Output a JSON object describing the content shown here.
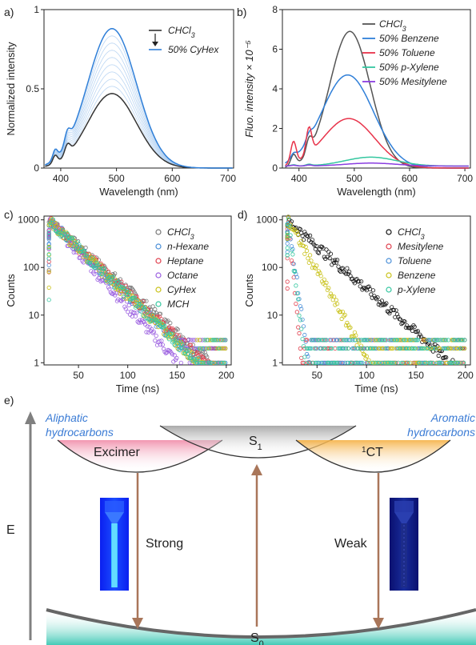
{
  "panels": {
    "a": "a)",
    "b": "b)",
    "c": "c)",
    "d": "d)",
    "e": "e)"
  },
  "chart_data": [
    {
      "id": "a",
      "type": "line",
      "xlabel": "Wavelength (nm)",
      "ylabel": "Normalized intensity",
      "xlim": [
        370,
        710
      ],
      "ylim": [
        0,
        1
      ],
      "xticks": [
        400,
        500,
        600,
        700
      ],
      "yticks": [
        {
          "v": 0,
          "t": "0"
        },
        {
          "v": 0.5,
          "t": "0.5"
        },
        {
          "v": 1,
          "t": "1"
        }
      ],
      "legend": [
        "CHCl3",
        "50% CyHex"
      ],
      "series": [
        {
          "name": "CHCl3",
          "color": "#333333",
          "peak": 0.47
        },
        {
          "name": "50% CyHex",
          "color": "#2f7fd8",
          "peak": 0.88
        }
      ],
      "n_intermediate": 8,
      "peak_x": 492
    },
    {
      "id": "b",
      "type": "line",
      "xlabel": "Wavelength (nm)",
      "ylabel": "Fluo. intensity × 10⁻⁵",
      "xlim": [
        370,
        710
      ],
      "ylim": [
        0,
        8
      ],
      "xticks": [
        400,
        500,
        600,
        700
      ],
      "yticks": [
        {
          "v": 0,
          "t": "0"
        },
        {
          "v": 2,
          "t": "2"
        },
        {
          "v": 4,
          "t": "4"
        },
        {
          "v": 6,
          "t": "6"
        },
        {
          "v": 8,
          "t": "8"
        }
      ],
      "series": [
        {
          "name": "CHCl3",
          "color": "#555555",
          "peak": 6.9,
          "peak_x": 492
        },
        {
          "name": "50% Benzene",
          "color": "#2f7fd8",
          "peak": 4.7,
          "peak_x": 488
        },
        {
          "name": "50% Toluene",
          "color": "#e8334a",
          "peak": 2.5,
          "peak_x": 490
        },
        {
          "name": "50% p-Xylene",
          "color": "#35c7a0",
          "peak": 0.45,
          "peak_x": 530
        },
        {
          "name": "50% Mesitylene",
          "color": "#8a3ee0",
          "peak": 0.15,
          "peak_x": 530
        }
      ]
    },
    {
      "id": "c",
      "type": "scatter",
      "xlabel": "Time (ns)",
      "ylabel": "Counts",
      "xlim": [
        15,
        205
      ],
      "ylim": [
        0.9,
        1200
      ],
      "log_y": true,
      "xticks": [
        50,
        100,
        150,
        200
      ],
      "yticks": [
        {
          "v": 1,
          "t": "1"
        },
        {
          "v": 10,
          "t": "10"
        },
        {
          "v": 100,
          "t": "100"
        },
        {
          "v": 1000,
          "t": "1000"
        }
      ],
      "series": [
        {
          "name": "CHCl3",
          "color": "#777777",
          "tau": 24
        },
        {
          "name": "n-Hexane",
          "color": "#4a8fd8",
          "tau": 22
        },
        {
          "name": "Heptane",
          "color": "#e0404e",
          "tau": 23
        },
        {
          "name": "Octane",
          "color": "#9b5fe0",
          "tau": 19
        },
        {
          "name": "CyHex",
          "color": "#c9c21a",
          "tau": 22
        },
        {
          "name": "MCH",
          "color": "#35c7a0",
          "tau": 22
        }
      ]
    },
    {
      "id": "d",
      "type": "scatter",
      "xlabel": "Time (ns)",
      "ylabel": "Counts",
      "xlim": [
        15,
        205
      ],
      "ylim": [
        0.9,
        1200
      ],
      "log_y": true,
      "xticks": [
        50,
        100,
        150,
        200
      ],
      "yticks": [
        {
          "v": 1,
          "t": "1"
        },
        {
          "v": 10,
          "t": "10"
        },
        {
          "v": 100,
          "t": "100"
        },
        {
          "v": 1000,
          "t": "1000"
        }
      ],
      "series": [
        {
          "name": "CHCl3",
          "color": "#111111",
          "tau": 24
        },
        {
          "name": "Mesitylene",
          "color": "#e0404e",
          "tau": 2
        },
        {
          "name": "Toluene",
          "color": "#4a8fd8",
          "tau": 3
        },
        {
          "name": "Benzene",
          "color": "#c9c21a",
          "tau": 12
        },
        {
          "name": "p-Xylene",
          "color": "#35c7a0",
          "tau": 2.5
        }
      ]
    }
  ],
  "diagram": {
    "axis_label": "E",
    "left_title_1": "Aliphatic",
    "left_title_2": "hydrocarbons",
    "right_title_1": "Aromatic",
    "right_title_2": "hydrocarbons",
    "left_state": "Excimer",
    "center_state": "S",
    "center_sub": "1",
    "right_state_sup": "1",
    "right_state": "CT",
    "ground_state": "S",
    "ground_sub": "0",
    "left_arrow_label": "Strong",
    "right_arrow_label": "Weak",
    "arrow_color": "#a9765a"
  }
}
